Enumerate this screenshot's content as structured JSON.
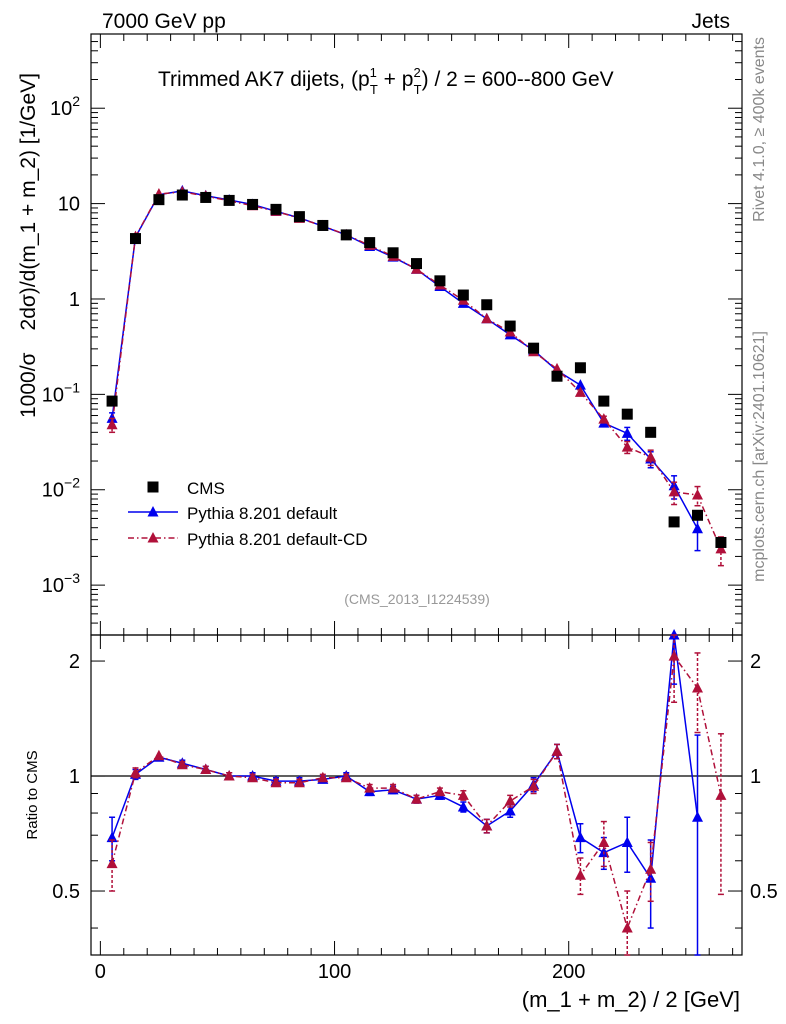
{
  "header": {
    "left": "7000 GeV pp",
    "right": "Jets",
    "side_rivet": "Rivet 4.1.0, ≥ 400k events",
    "side_mcplots": "mcplots.cern.ch [arXiv:2401.10621]",
    "analysis_id": "(CMS_2013_I1224539)"
  },
  "chart_data": {
    "type": "scatter",
    "title": "Trimmed AK7 dijets, (p_T^1 + p_T^2) / 2 = 600--800 GeV",
    "title_parts": [
      "Trimmed AK7 dijets, (p",
      "1",
      "T",
      " + p",
      "2",
      "T",
      ") / 2 = 600--800 GeV"
    ],
    "xlabel": "(m_1 + m_2) / 2 [GeV]",
    "ylabel_main": "1000/σ   2dσ)/d(m_1 + m_2) [1/GeV]",
    "ylabel_main_parts": [
      "1000/σ",
      "2dσ)/d(m_1 + m_2) [1/GeV]"
    ],
    "ylabel_ratio": "Ratio to CMS",
    "xlim": [
      -4,
      274
    ],
    "ylim_main": [
      0.0003,
      600
    ],
    "ylim_ratio": [
      0.34,
      2.34
    ],
    "y_scale_main": "log",
    "y_scale_ratio": "log",
    "x_ticks": [
      0,
      100,
      200
    ],
    "x_tick_labels": [
      "0",
      "100",
      "200"
    ],
    "y_ticks_main": [
      0.001,
      0.01,
      0.1,
      1,
      10,
      100
    ],
    "y_tick_labels_main": [
      {
        "base": "10",
        "exp": "−3"
      },
      {
        "base": "10",
        "exp": "−2"
      },
      {
        "base": "10",
        "exp": "−1"
      },
      {
        "base": "1",
        "exp": ""
      },
      {
        "base": "10",
        "exp": ""
      },
      {
        "base": "10",
        "exp": "2"
      }
    ],
    "y_ticks_ratio": [
      0.5,
      1,
      2
    ],
    "y_tick_labels_ratio": [
      "0.5",
      "1",
      "2"
    ],
    "legend_position": "lower-left",
    "x": [
      5,
      15,
      25,
      35,
      45,
      55,
      65,
      75,
      85,
      95,
      105,
      115,
      125,
      135,
      145,
      155,
      165,
      175,
      185,
      195,
      205,
      215,
      225,
      235,
      245,
      255,
      265
    ],
    "series": [
      {
        "name": "CMS",
        "style": "marker-square",
        "color": "#000000",
        "values": [
          0.085,
          4.3,
          11.0,
          12.3,
          11.6,
          10.8,
          9.8,
          8.7,
          7.3,
          5.9,
          4.7,
          3.9,
          3.05,
          2.35,
          1.55,
          1.1,
          0.87,
          0.52,
          0.305,
          0.155,
          0.19,
          0.085,
          0.062,
          0.04,
          0.0046,
          0.0054,
          0.0028
        ]
      },
      {
        "name": "Pythia 8.201 default",
        "style": "solid-line-triangle",
        "color": "#0000ee",
        "values": [
          0.056,
          4.45,
          12.4,
          13.6,
          12.1,
          10.9,
          9.8,
          8.3,
          7.1,
          5.8,
          4.7,
          3.55,
          2.75,
          2.05,
          1.35,
          0.9,
          0.62,
          0.42,
          0.29,
          0.178,
          0.125,
          0.05,
          0.039,
          0.021,
          0.011,
          0.0039,
          null
        ],
        "errors": [
          0.008,
          0.1,
          0.2,
          0.2,
          0.2,
          0.2,
          0.2,
          0.15,
          0.12,
          0.1,
          0.08,
          0.06,
          0.05,
          0.04,
          0.03,
          0.02,
          0.015,
          0.01,
          0.008,
          0.006,
          0.006,
          0.004,
          0.006,
          0.004,
          0.003,
          0.0016,
          null
        ]
      },
      {
        "name": "Pythia 8.201 default-CD",
        "style": "dashdot-line-triangle",
        "color": "#b0103a",
        "values": [
          0.048,
          4.5,
          12.6,
          13.3,
          12.0,
          10.7,
          9.5,
          8.3,
          7.0,
          5.85,
          4.7,
          3.65,
          2.8,
          2.05,
          1.4,
          0.97,
          0.62,
          0.45,
          0.28,
          0.185,
          0.105,
          0.055,
          0.028,
          0.022,
          0.0095,
          0.0088,
          0.0024
        ],
        "errors": [
          0.008,
          0.1,
          0.2,
          0.2,
          0.2,
          0.2,
          0.2,
          0.15,
          0.12,
          0.1,
          0.08,
          0.06,
          0.05,
          0.04,
          0.03,
          0.02,
          0.015,
          0.01,
          0.008,
          0.006,
          0.006,
          0.004,
          0.004,
          0.004,
          0.0025,
          0.002,
          0.0008
        ]
      }
    ],
    "ratio_series": [
      {
        "name": "Pythia 8.201 default",
        "values": [
          0.69,
          1.01,
          1.12,
          1.08,
          1.04,
          1.0,
          1.0,
          0.97,
          0.97,
          0.98,
          1.0,
          0.91,
          0.92,
          0.87,
          0.89,
          0.83,
          0.74,
          0.81,
          0.95,
          1.16,
          0.69,
          0.63,
          0.67,
          0.54,
          2.34,
          0.78,
          null
        ],
        "errors": [
          0.09,
          0.03,
          0.02,
          0.02,
          0.02,
          0.02,
          0.02,
          0.02,
          0.02,
          0.02,
          0.02,
          0.02,
          0.02,
          0.02,
          0.02,
          0.025,
          0.03,
          0.03,
          0.04,
          0.05,
          0.06,
          0.06,
          0.11,
          0.14,
          0.6,
          0.5,
          null
        ]
      },
      {
        "name": "Pythia 8.201 default-CD",
        "values": [
          0.59,
          1.02,
          1.13,
          1.07,
          1.04,
          1.0,
          0.99,
          0.96,
          0.96,
          0.99,
          0.99,
          0.93,
          0.93,
          0.87,
          0.91,
          0.89,
          0.74,
          0.86,
          0.94,
          1.16,
          0.55,
          0.67,
          0.4,
          0.57,
          2.06,
          1.7,
          0.89
        ],
        "errors": [
          0.09,
          0.03,
          0.02,
          0.02,
          0.02,
          0.02,
          0.02,
          0.02,
          0.02,
          0.02,
          0.02,
          0.02,
          0.02,
          0.02,
          0.02,
          0.025,
          0.03,
          0.03,
          0.04,
          0.05,
          0.06,
          0.09,
          0.1,
          0.1,
          0.5,
          0.4,
          0.4
        ]
      }
    ]
  }
}
